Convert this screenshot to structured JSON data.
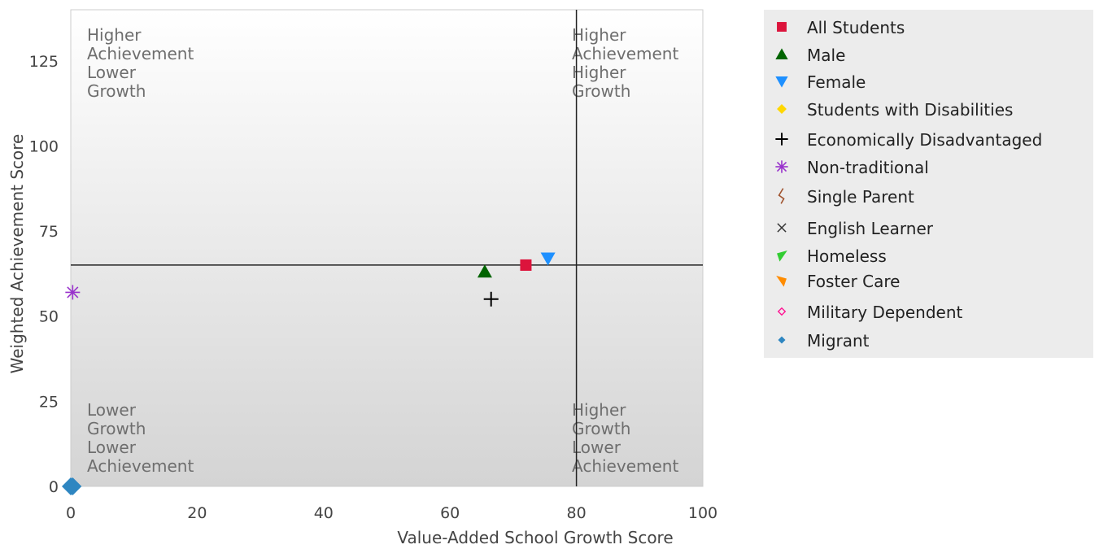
{
  "chart_data": {
    "type": "scatter",
    "xlabel": "Value-Added School Growth Score",
    "ylabel": "Weighted Achievement Score",
    "xlim": [
      0,
      100
    ],
    "ylim": [
      0,
      140
    ],
    "x_ticks": [
      "0",
      "20",
      "40",
      "60",
      "80",
      "100"
    ],
    "x_tick_values": [
      0,
      20,
      40,
      60,
      80,
      100
    ],
    "y_ticks": [
      "0",
      "25",
      "50",
      "75",
      "100",
      "125"
    ],
    "y_tick_values": [
      0,
      25,
      50,
      75,
      100,
      125
    ],
    "reference_lines": {
      "x": 80,
      "y": 65
    },
    "grid": false,
    "legend_position": "right",
    "quadrant_labels": {
      "top_left": [
        "Higher",
        "Achievement",
        "Lower",
        "Growth"
      ],
      "top_right": [
        "Higher",
        "Achievement",
        "Higher",
        "Growth"
      ],
      "bottom_left": [
        "Lower",
        "Growth",
        "Lower",
        "Achievement"
      ],
      "bottom_right": [
        "Higher",
        "Growth",
        "Lower",
        "Achievement"
      ]
    },
    "series": [
      {
        "name": "All Students",
        "color": "#dc143c",
        "marker": "square",
        "points": [
          [
            72,
            65
          ]
        ]
      },
      {
        "name": "Male",
        "color": "#006400",
        "marker": "triangle-up",
        "points": [
          [
            65.5,
            63
          ]
        ]
      },
      {
        "name": "Female",
        "color": "#1e90ff",
        "marker": "triangle-down",
        "points": [
          [
            75.5,
            67
          ]
        ]
      },
      {
        "name": "Students with Disabilities",
        "color": "#ffd700",
        "marker": "diamond",
        "points": []
      },
      {
        "name": "Economically Disadvantaged",
        "color": "#000000",
        "marker": "plus",
        "points": [
          [
            66.5,
            55
          ]
        ]
      },
      {
        "name": "Non-traditional",
        "color": "#9932cc",
        "marker": "asterisk",
        "points": [
          [
            0.3,
            57
          ]
        ]
      },
      {
        "name": "Single Parent",
        "color": "#a0522d",
        "marker": "squiggle",
        "points": []
      },
      {
        "name": "English Learner",
        "color": "#333333",
        "marker": "x",
        "points": []
      },
      {
        "name": "Homeless",
        "color": "#32cd32",
        "marker": "flag-left",
        "points": []
      },
      {
        "name": "Foster Care",
        "color": "#ff8c00",
        "marker": "flag-right",
        "points": []
      },
      {
        "name": "Military Dependent",
        "color": "#ff1493",
        "marker": "small-diamond-open",
        "points": []
      },
      {
        "name": "Migrant",
        "color": "#2e86c1",
        "marker": "small-diamond",
        "points": [
          [
            0,
            0
          ],
          [
            0.3,
            0
          ]
        ]
      }
    ]
  }
}
